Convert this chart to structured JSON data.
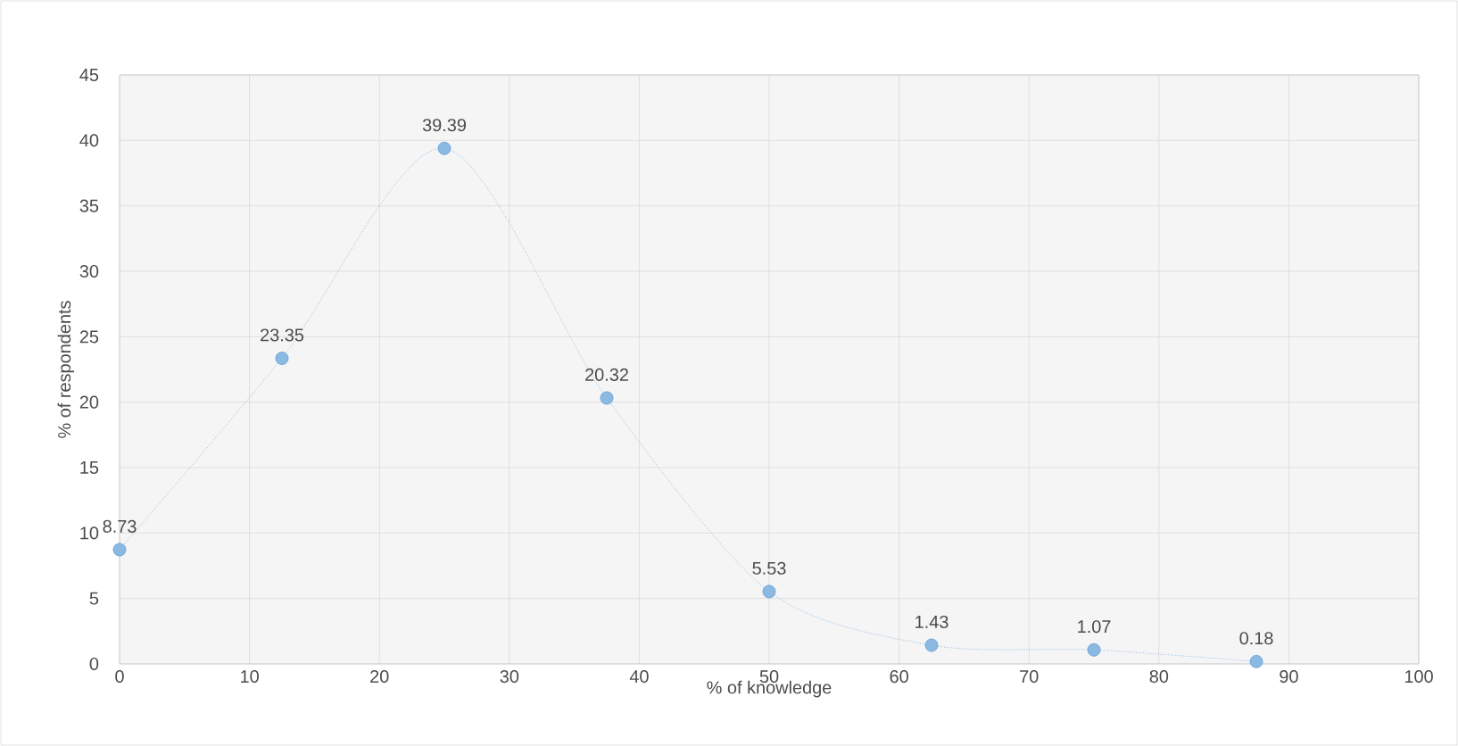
{
  "chart_data": {
    "type": "line",
    "xlabel": "% of knowledge",
    "ylabel": "% of respondents",
    "x": [
      0,
      12.5,
      25,
      37.5,
      50,
      62.5,
      75,
      87.5
    ],
    "series": [
      {
        "color": "#5b9bd5",
        "values": [
          8.73,
          23.35,
          39.39,
          20.32,
          5.53,
          1.43,
          1.07,
          0.18
        ]
      }
    ],
    "xlim": [
      0,
      100
    ],
    "xticks": [
      0,
      10,
      20,
      30,
      40,
      50,
      60,
      70,
      80,
      90,
      100
    ],
    "ylim": [
      0,
      45
    ],
    "yticks": [
      0,
      5,
      10,
      15,
      20,
      25,
      30,
      35,
      40,
      45
    ],
    "grid": true,
    "marker": "circle",
    "line_style": "dotted",
    "data_labels": true
  }
}
